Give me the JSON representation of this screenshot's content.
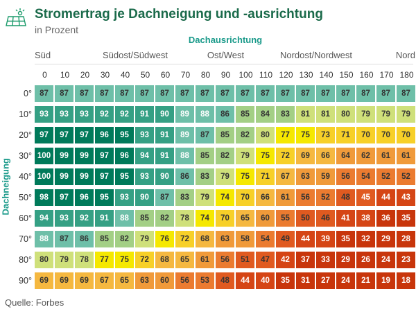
{
  "header": {
    "title": "Stromertrag je Dachneigung und -ausrichtung",
    "subtitle": "in Prozent",
    "logo_icon": "solar-panel-icon"
  },
  "source": "Quelle: Forbes",
  "chart_data": {
    "type": "heatmap",
    "title": "Stromertrag je Dachneigung und -ausrichtung",
    "subtitle": "in Prozent",
    "xlabel": "Dachausrichtung",
    "ylabel": "Dachneigung",
    "direction_labels": [
      {
        "label": "Süd",
        "at": 0
      },
      {
        "label": "Südost/Südwest",
        "at": 45
      },
      {
        "label": "Ost/West",
        "at": 90
      },
      {
        "label": "Nordost/Nordwest",
        "at": 135
      },
      {
        "label": "Nord",
        "at": 180
      }
    ],
    "x": [
      "0",
      "10",
      "20",
      "30",
      "40",
      "50",
      "60",
      "70",
      "80",
      "90",
      "100",
      "110",
      "120",
      "130",
      "140",
      "150",
      "160",
      "170",
      "180"
    ],
    "y": [
      "0°",
      "10°",
      "20°",
      "30°",
      "40°",
      "50°",
      "60°",
      "70°",
      "80°",
      "90°"
    ],
    "values": [
      [
        87,
        87,
        87,
        87,
        87,
        87,
        87,
        87,
        87,
        87,
        87,
        87,
        87,
        87,
        87,
        87,
        87,
        87,
        87
      ],
      [
        93,
        93,
        93,
        92,
        92,
        91,
        90,
        89,
        88,
        86,
        85,
        84,
        83,
        81,
        81,
        80,
        79,
        79,
        79
      ],
      [
        97,
        97,
        97,
        96,
        95,
        93,
        91,
        89,
        87,
        85,
        82,
        80,
        77,
        75,
        73,
        71,
        70,
        70,
        70
      ],
      [
        100,
        99,
        99,
        97,
        96,
        94,
        91,
        88,
        85,
        82,
        79,
        75,
        72,
        69,
        66,
        64,
        62,
        61,
        61
      ],
      [
        100,
        99,
        99,
        97,
        95,
        93,
        90,
        86,
        83,
        79,
        75,
        71,
        67,
        63,
        59,
        56,
        54,
        52,
        52
      ],
      [
        98,
        97,
        96,
        95,
        93,
        90,
        87,
        83,
        79,
        74,
        70,
        66,
        61,
        56,
        52,
        48,
        45,
        44,
        43
      ],
      [
        94,
        93,
        92,
        91,
        88,
        85,
        82,
        78,
        74,
        70,
        65,
        60,
        55,
        50,
        46,
        41,
        38,
        36,
        35
      ],
      [
        88,
        87,
        86,
        85,
        82,
        79,
        76,
        72,
        68,
        63,
        58,
        54,
        49,
        44,
        39,
        35,
        32,
        29,
        28
      ],
      [
        80,
        79,
        78,
        77,
        75,
        72,
        68,
        65,
        61,
        56,
        51,
        47,
        42,
        37,
        33,
        29,
        26,
        24,
        23
      ],
      [
        69,
        69,
        69,
        67,
        65,
        63,
        60,
        56,
        53,
        48,
        44,
        40,
        35,
        31,
        27,
        24,
        21,
        19,
        18
      ]
    ],
    "color_scale": {
      "stops": [
        {
          "value": 100,
          "color": "#007a5a"
        },
        {
          "value": 95,
          "color": "#007a5a"
        },
        {
          "value": 90,
          "color": "#35a084"
        },
        {
          "value": 86,
          "color": "#6ebfa8"
        },
        {
          "value": 82,
          "color": "#a3cf85"
        },
        {
          "value": 78,
          "color": "#cfe07a"
        },
        {
          "value": 74,
          "color": "#f5e800"
        },
        {
          "value": 70,
          "color": "#f7d028"
        },
        {
          "value": 65,
          "color": "#f5b840"
        },
        {
          "value": 58,
          "color": "#f09a3a"
        },
        {
          "value": 52,
          "color": "#eb7b30"
        },
        {
          "value": 45,
          "color": "#e05a20"
        },
        {
          "value": 38,
          "color": "#d54515"
        },
        {
          "value": 18,
          "color": "#c8350b"
        }
      ]
    },
    "grid": false,
    "legend": "none"
  }
}
